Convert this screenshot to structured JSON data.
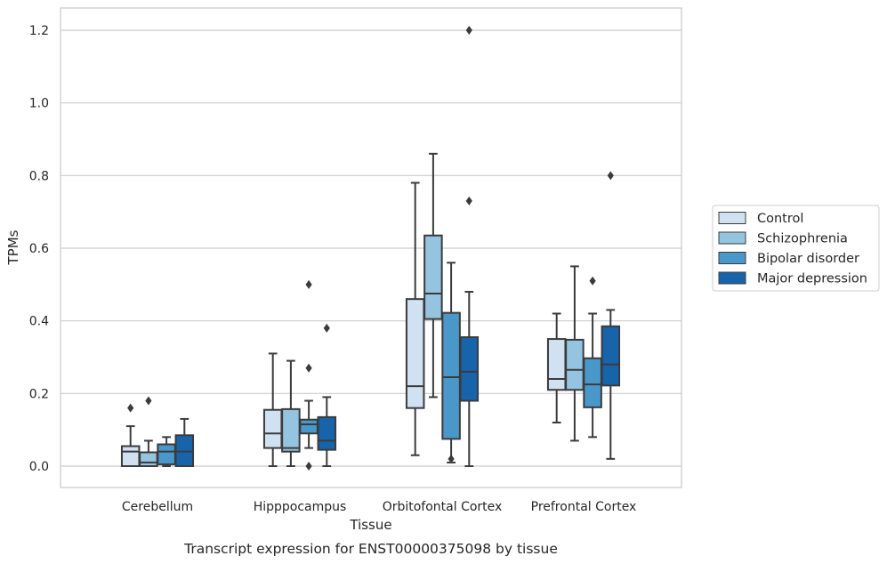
{
  "caption": "Transcript expression for ENST00000375098 by tissue",
  "chart_data": {
    "type": "box",
    "xlabel": "Tissue",
    "ylabel": "TPMs",
    "ylim": [
      -0.06,
      1.26
    ],
    "yticks": [
      "0.0",
      "0.2",
      "0.4",
      "0.6",
      "0.8",
      "1.0",
      "1.2"
    ],
    "grid": "horizontal",
    "legend_position": "right",
    "categories": [
      "Cerebellum",
      "Hipppocampus",
      "Orbitofontal Cortex",
      "Prefrontal Cortex"
    ],
    "series": [
      {
        "name": "Control",
        "color": "#d0e1f2",
        "boxes": [
          {
            "whislo": 0.0,
            "q1": 0.0,
            "med": 0.04,
            "q3": 0.055,
            "whishi": 0.11,
            "fliers": [
              0.16
            ]
          },
          {
            "whislo": 0.0,
            "q1": 0.05,
            "med": 0.09,
            "q3": 0.155,
            "whishi": 0.31,
            "fliers": []
          },
          {
            "whislo": 0.03,
            "q1": 0.16,
            "med": 0.22,
            "q3": 0.46,
            "whishi": 0.78,
            "fliers": []
          },
          {
            "whislo": 0.12,
            "q1": 0.21,
            "med": 0.24,
            "q3": 0.35,
            "whishi": 0.42,
            "fliers": []
          }
        ]
      },
      {
        "name": "Schizophrenia",
        "color": "#94c4df",
        "boxes": [
          {
            "whislo": 0.0,
            "q1": 0.0,
            "med": 0.01,
            "q3": 0.038,
            "whishi": 0.07,
            "fliers": [
              0.18
            ]
          },
          {
            "whislo": 0.0,
            "q1": 0.04,
            "med": 0.05,
            "q3": 0.157,
            "whishi": 0.29,
            "fliers": []
          },
          {
            "whislo": 0.19,
            "q1": 0.405,
            "med": 0.475,
            "q3": 0.635,
            "whishi": 0.86,
            "fliers": []
          },
          {
            "whislo": 0.07,
            "q1": 0.21,
            "med": 0.265,
            "q3": 0.348,
            "whishi": 0.55,
            "fliers": []
          }
        ]
      },
      {
        "name": "Bipolar disorder",
        "color": "#4a98c9",
        "boxes": [
          {
            "whislo": 0.0,
            "q1": 0.005,
            "med": 0.04,
            "q3": 0.06,
            "whishi": 0.08,
            "fliers": []
          },
          {
            "whislo": 0.05,
            "q1": 0.09,
            "med": 0.115,
            "q3": 0.128,
            "whishi": 0.18,
            "fliers": [
              0.5,
              0.27,
              0.0
            ]
          },
          {
            "whislo": 0.01,
            "q1": 0.075,
            "med": 0.245,
            "q3": 0.422,
            "whishi": 0.56,
            "fliers": [
              0.02
            ]
          },
          {
            "whislo": 0.08,
            "q1": 0.162,
            "med": 0.225,
            "q3": 0.297,
            "whishi": 0.42,
            "fliers": [
              0.51
            ]
          }
        ]
      },
      {
        "name": "Major depression",
        "color": "#1764ab",
        "boxes": [
          {
            "whislo": 0.0,
            "q1": 0.0,
            "med": 0.04,
            "q3": 0.085,
            "whishi": 0.13,
            "fliers": []
          },
          {
            "whislo": 0.0,
            "q1": 0.045,
            "med": 0.07,
            "q3": 0.135,
            "whishi": 0.19,
            "fliers": [
              0.38
            ]
          },
          {
            "whislo": 0.0,
            "q1": 0.18,
            "med": 0.26,
            "q3": 0.355,
            "whishi": 0.48,
            "fliers": [
              1.2,
              0.73
            ]
          },
          {
            "whislo": 0.02,
            "q1": 0.222,
            "med": 0.28,
            "q3": 0.385,
            "whishi": 0.43,
            "fliers": [
              0.8
            ]
          }
        ]
      }
    ]
  }
}
